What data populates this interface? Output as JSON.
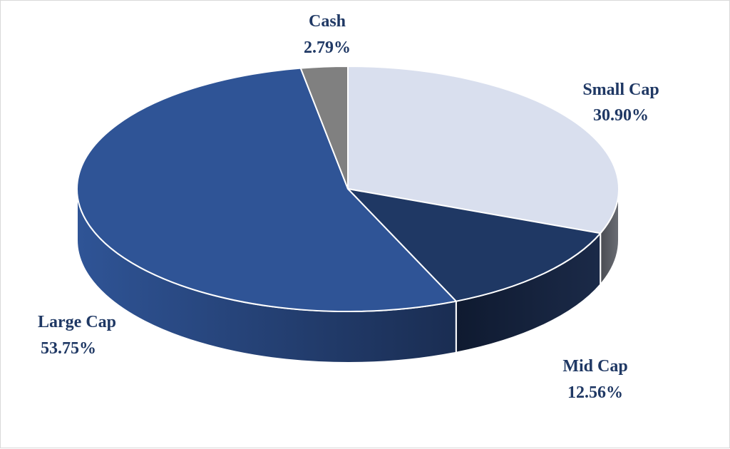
{
  "chart_data": {
    "type": "pie",
    "title": "",
    "categories": [
      "Small Cap",
      "Mid Cap",
      "Large Cap",
      "Cash"
    ],
    "values": [
      30.9,
      12.56,
      53.75,
      2.79
    ],
    "value_labels": [
      "30.90%",
      "12.56%",
      "53.75%",
      "2.79%"
    ],
    "unit": "%",
    "style": "3d",
    "legend": "none",
    "colors": {
      "Small Cap": {
        "top": "#d9dfee",
        "side": "#5d6066"
      },
      "Mid Cap": {
        "top": "#1f3864",
        "side": "#0f1a30"
      },
      "Large Cap": {
        "top": "#2f5496",
        "side": "#1f3864"
      },
      "Cash": {
        "top": "#808080",
        "side": "#555555"
      }
    },
    "label_color": "#1f3864"
  }
}
